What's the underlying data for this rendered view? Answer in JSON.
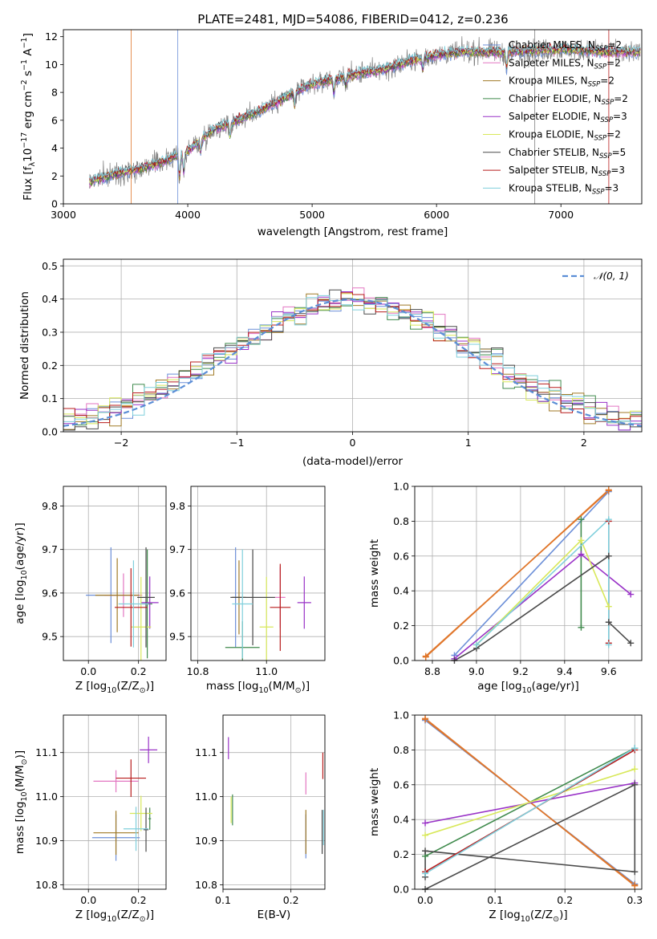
{
  "colors": {
    "Chabrier MILES": "#6c8fd8",
    "Salpeter MILES": "#e376c2",
    "Kroupa MILES": "#a07a26",
    "Chabrier ELODIE": "#3f8a4c",
    "Salpeter ELODIE": "#9932c7",
    "Kroupa ELODIE": "#d8e85a",
    "Chabrier STELIB": "#4a4a4a",
    "Salpeter STELIB": "#b81c1c",
    "Kroupa STELIB": "#7fcfdc",
    "N01": "#5b8ed6",
    "orange": "#e0762a"
  },
  "chart_data": [
    {
      "id": "spectrum",
      "type": "line",
      "title": "PLATE=2481, MJD=54086, FIBERID=0412, z=0.236",
      "xlabel": "wavelength [Angstrom, rest frame]",
      "ylabel_parts": [
        "Flux [f",
        "λ",
        "10",
        "−17",
        " erg cm",
        "−2",
        " s",
        "−1",
        " A",
        "−1",
        "]"
      ],
      "xlim": [
        3000,
        7650
      ],
      "ylim": [
        0,
        12.5
      ],
      "xticks": [
        3000,
        4000,
        5000,
        6000,
        7000
      ],
      "yticks": [
        0,
        2,
        4,
        6,
        8,
        10,
        12
      ],
      "legend_position": "right",
      "legend": [
        {
          "name": "Chabrier MILES",
          "nssp": "2"
        },
        {
          "name": "Salpeter MILES",
          "nssp": "2"
        },
        {
          "name": "Kroupa MILES",
          "nssp": "2"
        },
        {
          "name": "Chabrier ELODIE",
          "nssp": "2"
        },
        {
          "name": "Salpeter ELODIE",
          "nssp": "3"
        },
        {
          "name": "Kroupa ELODIE",
          "nssp": "2"
        },
        {
          "name": "Chabrier STELIB",
          "nssp": "5"
        },
        {
          "name": "Salpeter STELIB",
          "nssp": "3"
        },
        {
          "name": "Kroupa STELIB",
          "nssp": "3"
        }
      ],
      "continuum": {
        "x": [
          3210,
          3400,
          3600,
          3800,
          4000,
          4200,
          4400,
          4600,
          4800,
          5000,
          5200,
          5400,
          5600,
          5800,
          6000,
          6200,
          6400,
          6600,
          6800,
          7000,
          7200,
          7400
        ],
        "y": [
          1.6,
          2.1,
          2.5,
          3.0,
          3.8,
          5.3,
          6.0,
          6.8,
          7.7,
          8.6,
          9.0,
          9.4,
          9.7,
          10.3,
          10.7,
          10.9,
          10.9,
          10.9,
          11.0,
          11.1,
          11.0,
          10.9
        ]
      }
    },
    {
      "id": "residuals",
      "type": "line",
      "xlabel": "(data-model)/error",
      "ylabel": "Normed distribution",
      "xlim": [
        -2.5,
        2.5
      ],
      "ylim": [
        0,
        0.52
      ],
      "xticks": [
        -2,
        -1,
        0,
        1,
        2
      ],
      "yticks": [
        0.0,
        0.1,
        0.2,
        0.3,
        0.4,
        0.5
      ],
      "grid": true,
      "legend": [
        {
          "name": "𝒩(0, 1)",
          "style": "dashed"
        }
      ],
      "legend_position": "upper right",
      "bin_width": 0.1
    },
    {
      "id": "age_vs_Z",
      "type": "scatter",
      "xlabel_parts": [
        "Z [log",
        "10",
        "(Z/Z",
        "⊙",
        ")]"
      ],
      "ylabel_parts": [
        "age  [log",
        "10",
        "(age/yr)]"
      ],
      "xlim": [
        -0.1,
        0.31
      ],
      "ylim": [
        9.445,
        9.845
      ],
      "xticks": [
        0.0,
        0.2
      ],
      "yticks": [
        9.5,
        9.6,
        9.7,
        9.8
      ],
      "grid": true,
      "errorbars": [
        {
          "model": "Chabrier MILES",
          "x": 0.09,
          "xerr": 0.2,
          "y": 9.595,
          "yerr": 0.22
        },
        {
          "model": "Salpeter MILES",
          "x": 0.14,
          "xerr": 0.15,
          "y": 9.595,
          "yerr": 0.1
        },
        {
          "model": "Kroupa MILES",
          "x": 0.115,
          "xerr": 0.175,
          "y": 9.595,
          "yerr": 0.17
        },
        {
          "model": "Chabrier ELODIE",
          "x": 0.235,
          "xerr": 0.04,
          "y": 9.575,
          "yerr": 0.25
        },
        {
          "model": "Salpeter ELODIE",
          "x": 0.245,
          "xerr": 0.07,
          "y": 9.578,
          "yerr": 0.12
        },
        {
          "model": "Kroupa ELODIE",
          "x": 0.21,
          "xerr": 0.08,
          "y": 9.522,
          "yerr": 0.23
        },
        {
          "model": "Chabrier STELIB",
          "x": 0.23,
          "xerr": 0.07,
          "y": 9.59,
          "yerr": 0.23
        },
        {
          "model": "Salpeter STELIB",
          "x": 0.17,
          "xerr": 0.13,
          "y": 9.567,
          "yerr": 0.18
        },
        {
          "model": "Kroupa STELIB",
          "x": 0.18,
          "xerr": 0.12,
          "y": 9.575,
          "yerr": 0.2
        }
      ]
    },
    {
      "id": "age_vs_mass",
      "type": "scatter",
      "xlabel_parts": [
        "mass [log",
        "10",
        "(M/M",
        "⊙",
        ")]"
      ],
      "xlim": [
        10.78,
        11.17
      ],
      "ylim": [
        9.445,
        9.845
      ],
      "xticks": [
        10.8,
        11.0
      ],
      "yticks": [
        9.5,
        9.6,
        9.7,
        9.8
      ],
      "grid": true,
      "errorbars": [
        {
          "model": "Chabrier MILES",
          "x": 10.91,
          "xerr": 0.02,
          "y": 9.59,
          "yerr": 0.23
        },
        {
          "model": "Salpeter MILES",
          "x": 11.04,
          "xerr": 0.03,
          "y": 9.59,
          "yerr": 0.14
        },
        {
          "model": "Kroupa MILES",
          "x": 10.92,
          "xerr": 0.04,
          "y": 9.59,
          "yerr": 0.17
        },
        {
          "model": "Chabrier ELODIE",
          "x": 10.93,
          "xerr": 0.1,
          "y": 9.475,
          "yerr": 0.12
        },
        {
          "model": "Salpeter ELODIE",
          "x": 11.11,
          "xerr": 0.04,
          "y": 9.578,
          "yerr": 0.12
        },
        {
          "model": "Kroupa ELODIE",
          "x": 11.0,
          "xerr": 0.04,
          "y": 9.522,
          "yerr": 0.23
        },
        {
          "model": "Chabrier STELIB",
          "x": 10.96,
          "xerr": 0.13,
          "y": 9.59,
          "yerr": 0.22
        },
        {
          "model": "Salpeter STELIB",
          "x": 11.04,
          "xerr": 0.06,
          "y": 9.567,
          "yerr": 0.2
        },
        {
          "model": "Kroupa STELIB",
          "x": 10.93,
          "xerr": 0.06,
          "y": 9.575,
          "yerr": 0.25
        }
      ]
    },
    {
      "id": "weight_vs_age",
      "type": "line",
      "xlabel_parts": [
        "age  [log",
        "10",
        "(age/yr)]"
      ],
      "ylabel": "mass weight",
      "xlim": [
        8.72,
        9.75
      ],
      "ylim": [
        0,
        1
      ],
      "xticks": [
        8.8,
        9.0,
        9.2,
        9.4,
        9.6
      ],
      "yticks": [
        0.0,
        0.2,
        0.4,
        0.6,
        0.8,
        1.0
      ],
      "grid": true,
      "series": [
        {
          "model": "Chabrier MILES",
          "points": [
            [
              8.9,
              0.03
            ],
            [
              9.6,
              0.97
            ]
          ]
        },
        {
          "model": "Salpeter MILES",
          "points": [
            [
              8.77,
              0.02
            ],
            [
              9.6,
              0.98
            ]
          ]
        },
        {
          "model": "Kroupa MILES",
          "points": [
            [
              8.77,
              0.025
            ],
            [
              9.6,
              0.975
            ]
          ]
        },
        {
          "model": "Chabrier ELODIE",
          "points": [
            [
              9.475,
              0.19
            ],
            [
              9.475,
              0.81
            ]
          ]
        },
        {
          "model": "Salpeter ELODIE",
          "points": [
            [
              8.9,
              0.01
            ],
            [
              9.475,
              0.61
            ],
            [
              9.7,
              0.38
            ]
          ]
        },
        {
          "model": "Kroupa ELODIE",
          "points": [
            [
              9.0,
              0.09
            ],
            [
              9.475,
              0.69
            ],
            [
              9.6,
              0.31
            ]
          ]
        },
        {
          "model": "Chabrier STELIB",
          "points": [
            [
              8.9,
              0.0
            ],
            [
              9.0,
              0.07
            ],
            [
              9.6,
              0.6
            ],
            [
              9.6,
              0.22
            ],
            [
              9.7,
              0.1
            ]
          ]
        },
        {
          "model": "Salpeter STELIB",
          "points": [
            [
              9.6,
              0.1
            ],
            [
              9.6,
              0.8
            ]
          ]
        },
        {
          "model": "Kroupa STELIB",
          "points": [
            [
              9.0,
              0.09
            ],
            [
              9.6,
              0.81
            ],
            [
              9.6,
              0.09
            ]
          ]
        }
      ]
    },
    {
      "id": "mass_vs_Z",
      "type": "scatter",
      "xlabel_parts": [
        "Z [log",
        "10",
        "(Z/Z",
        "⊙",
        ")]"
      ],
      "ylabel_parts": [
        "mass [log",
        "10",
        "(M/M",
        "⊙",
        ")]"
      ],
      "xlim": [
        -0.1,
        0.31
      ],
      "ylim": [
        10.79,
        11.185
      ],
      "xticks": [
        0.0,
        0.2
      ],
      "yticks": [
        10.8,
        10.9,
        11.0,
        11.1
      ],
      "grid": true,
      "errorbars": [
        {
          "model": "Chabrier MILES",
          "x": 0.11,
          "xerr": 0.19,
          "y": 10.907,
          "yerr": 0.105
        },
        {
          "model": "Salpeter MILES",
          "x": 0.11,
          "xerr": 0.18,
          "y": 11.035,
          "yerr": 0.05
        },
        {
          "model": "Kroupa MILES",
          "x": 0.11,
          "xerr": 0.18,
          "y": 10.918,
          "yerr": 0.1
        },
        {
          "model": "Chabrier ELODIE",
          "x": 0.245,
          "xerr": 0.01,
          "y": 10.95,
          "yerr": 0.05
        },
        {
          "model": "Salpeter ELODIE",
          "x": 0.24,
          "xerr": 0.07,
          "y": 11.106,
          "yerr": 0.06
        },
        {
          "model": "Kroupa ELODIE",
          "x": 0.21,
          "xerr": 0.09,
          "y": 10.962,
          "yerr": 0.08
        },
        {
          "model": "Chabrier STELIB",
          "x": 0.23,
          "xerr": 0.02,
          "y": 10.925,
          "yerr": 0.1
        },
        {
          "model": "Salpeter STELIB",
          "x": 0.17,
          "xerr": 0.12,
          "y": 11.042,
          "yerr": 0.085
        },
        {
          "model": "Kroupa STELIB",
          "x": 0.19,
          "xerr": 0.1,
          "y": 10.927,
          "yerr": 0.1
        }
      ]
    },
    {
      "id": "mass_vs_ebv",
      "type": "scatter",
      "xlabel": "E(B-V)",
      "xlim": [
        0.1,
        0.25
      ],
      "ylim": [
        10.79,
        11.185
      ],
      "xticks": [
        0.1,
        0.2
      ],
      "yticks": [
        10.8,
        10.9,
        11.0,
        11.1
      ],
      "grid": true,
      "errorbars": [
        {
          "model": "Chabrier MILES",
          "x": 0.222,
          "y": 10.91,
          "yerr": 0.1
        },
        {
          "model": "Salpeter MILES",
          "x": 0.222,
          "y": 11.03,
          "yerr": 0.05
        },
        {
          "model": "Kroupa MILES",
          "x": 0.222,
          "y": 10.92,
          "yerr": 0.1
        },
        {
          "model": "Chabrier ELODIE",
          "x": 0.114,
          "y": 10.97,
          "yerr": 0.07
        },
        {
          "model": "Salpeter ELODIE",
          "x": 0.108,
          "y": 11.11,
          "yerr": 0.05
        },
        {
          "model": "Kroupa ELODIE",
          "x": 0.112,
          "y": 10.97,
          "yerr": 0.06
        },
        {
          "model": "Chabrier STELIB",
          "x": 0.246,
          "y": 10.92,
          "yerr": 0.1
        },
        {
          "model": "Salpeter STELIB",
          "x": 0.247,
          "y": 11.07,
          "yerr": 0.06
        },
        {
          "model": "Kroupa STELIB",
          "x": 0.248,
          "y": 10.93,
          "yerr": 0.08
        }
      ]
    },
    {
      "id": "weight_vs_Z",
      "type": "line",
      "xlabel_parts": [
        "Z [log",
        "10",
        "(Z/Z",
        "⊙",
        ")]"
      ],
      "ylabel": "mass weight",
      "xlim": [
        -0.015,
        0.31
      ],
      "ylim": [
        0,
        1
      ],
      "xticks": [
        0.0,
        0.1,
        0.2,
        0.3
      ],
      "yticks": [
        0.0,
        0.2,
        0.4,
        0.6,
        0.8,
        1.0
      ],
      "grid": true,
      "series": [
        {
          "model": "Chabrier MILES",
          "points": [
            [
              0.0,
              0.97
            ],
            [
              0.3,
              0.03
            ]
          ]
        },
        {
          "model": "Salpeter MILES",
          "points": [
            [
              0.0,
              0.98
            ],
            [
              0.3,
              0.02
            ]
          ]
        },
        {
          "model": "Kroupa MILES",
          "points": [
            [
              0.0,
              0.975
            ],
            [
              0.3,
              0.025
            ]
          ]
        },
        {
          "model": "Chabrier ELODIE",
          "points": [
            [
              0.0,
              0.19
            ],
            [
              0.3,
              0.81
            ]
          ]
        },
        {
          "model": "Salpeter ELODIE",
          "points": [
            [
              0.0,
              0.38
            ],
            [
              0.3,
              0.61
            ]
          ]
        },
        {
          "model": "Kroupa ELODIE",
          "points": [
            [
              0.0,
              0.31
            ],
            [
              0.3,
              0.69
            ]
          ]
        },
        {
          "model": "Chabrier STELIB",
          "points": [
            [
              0.0,
              0.0
            ],
            [
              0.3,
              0.6
            ],
            [
              0.3,
              0.1
            ],
            [
              0.0,
              0.22
            ],
            [
              0.0,
              0.07
            ]
          ]
        },
        {
          "model": "Salpeter STELIB",
          "points": [
            [
              0.0,
              0.1
            ],
            [
              0.3,
              0.8
            ]
          ]
        },
        {
          "model": "Kroupa STELIB",
          "points": [
            [
              0.0,
              0.09
            ],
            [
              0.3,
              0.81
            ]
          ]
        }
      ]
    }
  ]
}
